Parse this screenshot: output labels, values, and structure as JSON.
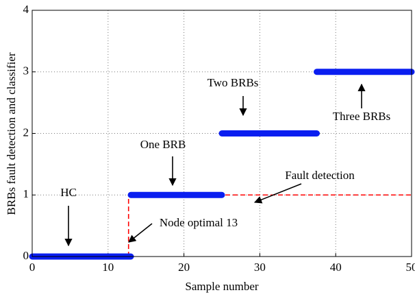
{
  "chart_data": {
    "type": "line",
    "xlabel": "Sample number",
    "ylabel": "BRBs fault detection and classifier",
    "xlim": [
      0,
      50
    ],
    "xticks": [
      0,
      10,
      20,
      30,
      40,
      50
    ],
    "ylim": [
      0,
      4
    ],
    "yticks": [
      0,
      1,
      2,
      3,
      4
    ],
    "grid": true,
    "series": [
      {
        "color": "#0a1ef0",
        "style": "solid",
        "x": [
          0,
          13,
          13,
          13,
          25,
          25,
          25,
          37.5,
          37.5,
          37.5,
          50
        ],
        "values": [
          0,
          0,
          null,
          1,
          1,
          null,
          2,
          2,
          null,
          3,
          3
        ]
      },
      {
        "color": "#ff0000",
        "style": "dashed",
        "x": [
          12.7,
          12.7,
          50
        ],
        "values": [
          0,
          1,
          1
        ]
      }
    ],
    "annotations": [
      "HC",
      "One BRB",
      "Two BRBs",
      "Three BRBs",
      "Fault detection",
      "Node optimal 13"
    ]
  }
}
